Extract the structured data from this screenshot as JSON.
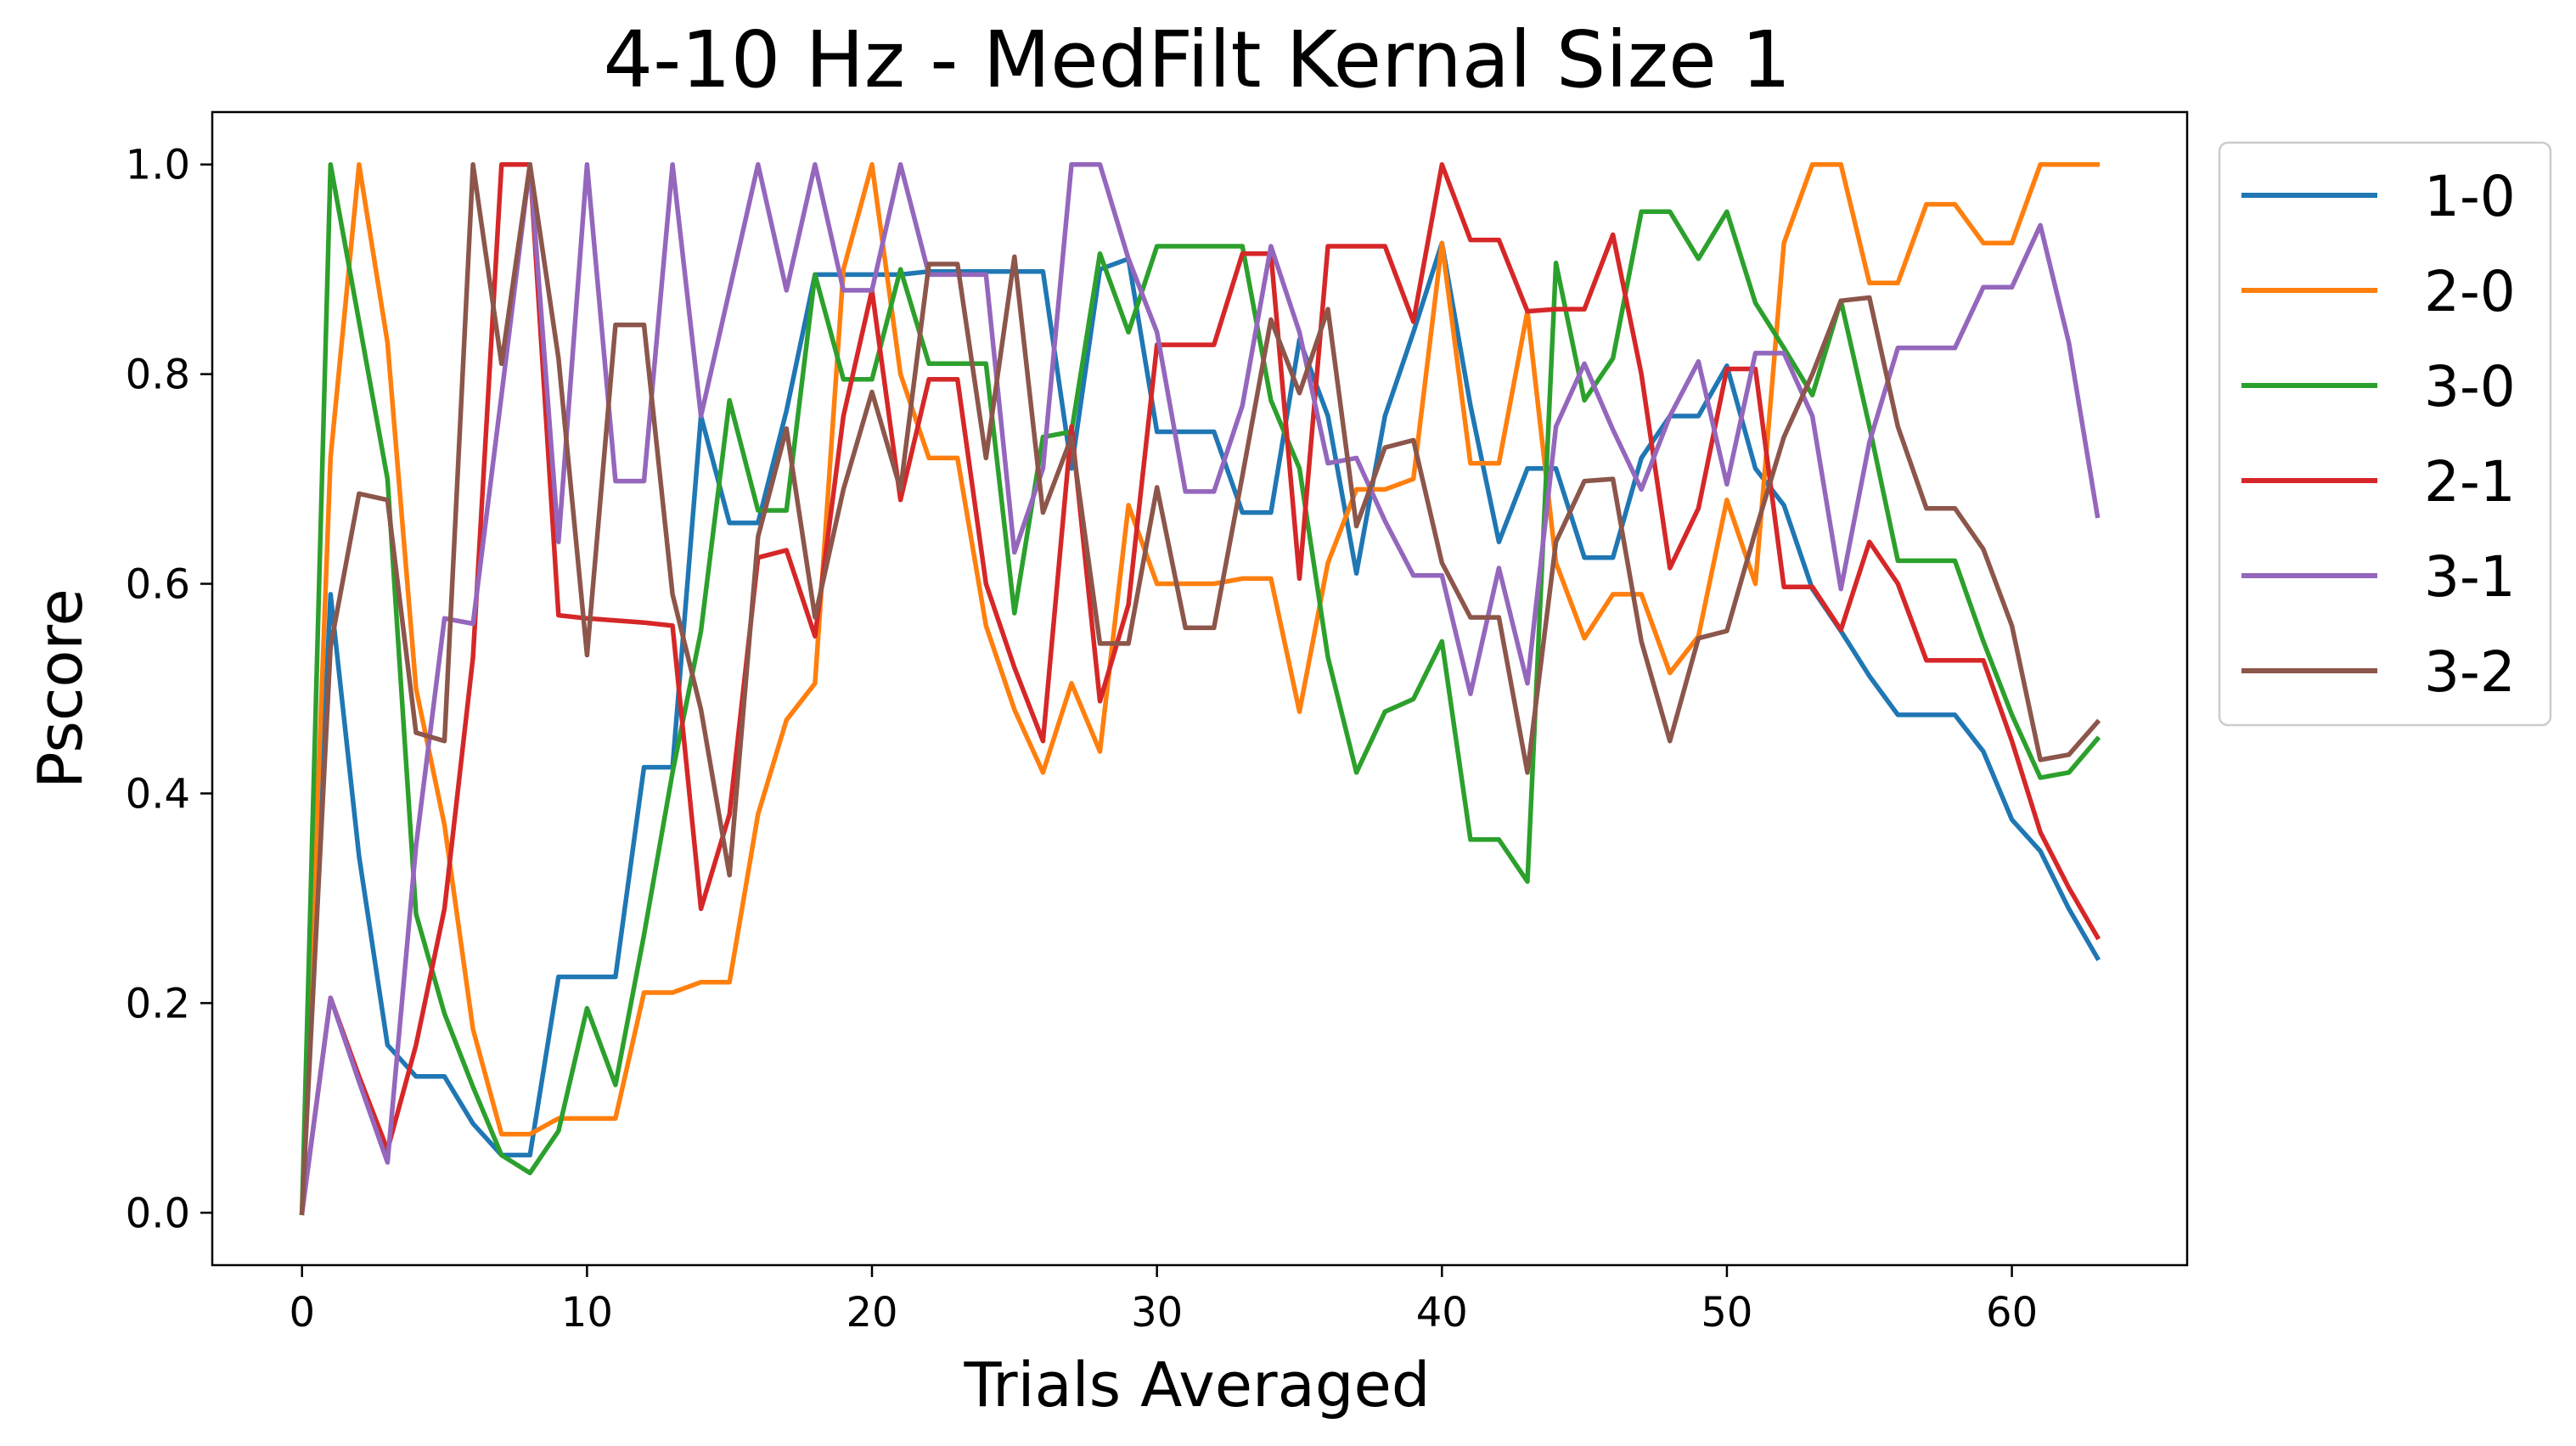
{
  "chart_data": {
    "type": "line",
    "title": "4-10 Hz - MedFilt Kernal Size 1",
    "xlabel": "Trials Averaged",
    "ylabel": "Pscore",
    "xlim": [
      -3.15,
      66.15
    ],
    "ylim": [
      -0.05,
      1.05
    ],
    "xticks": [
      0,
      10,
      20,
      30,
      40,
      50,
      60
    ],
    "xtick_labels": [
      "0",
      "10",
      "20",
      "30",
      "40",
      "50",
      "60"
    ],
    "yticks": [
      0.0,
      0.2,
      0.4,
      0.6,
      0.8,
      1.0
    ],
    "ytick_labels": [
      "0.0",
      "0.2",
      "0.4",
      "0.6",
      "0.8",
      "1.0"
    ],
    "grid": false,
    "legend_position": "outside-right-top",
    "x": [
      0,
      1,
      2,
      3,
      4,
      5,
      6,
      7,
      8,
      9,
      10,
      11,
      12,
      13,
      14,
      15,
      16,
      17,
      18,
      19,
      20,
      21,
      22,
      23,
      24,
      25,
      26,
      27,
      28,
      29,
      30,
      31,
      32,
      33,
      34,
      35,
      36,
      37,
      38,
      39,
      40,
      41,
      42,
      43,
      44,
      45,
      46,
      47,
      48,
      49,
      50,
      51,
      52,
      53,
      54,
      55,
      56,
      57,
      58,
      59,
      60,
      61,
      62,
      63
    ],
    "series": [
      {
        "name": "1-0",
        "color": "#1f77b4",
        "values": [
          0,
          0.59,
          0.34,
          0.16,
          0.13,
          0.13,
          0.085,
          0.055,
          0.055,
          0.225,
          0.225,
          0.225,
          0.425,
          0.425,
          0.76,
          0.658,
          0.658,
          0.765,
          0.895,
          0.895,
          0.895,
          0.895,
          0.898,
          0.898,
          0.898,
          0.898,
          0.898,
          0.71,
          0.9,
          0.91,
          0.745,
          0.745,
          0.745,
          0.668,
          0.668,
          0.833,
          0.76,
          0.61,
          0.76,
          0.84,
          0.925,
          0.77,
          0.64,
          0.71,
          0.71,
          0.625,
          0.625,
          0.72,
          0.76,
          0.76,
          0.808,
          0.71,
          0.675,
          0.595,
          0.555,
          0.512,
          0.475,
          0.475,
          0.475,
          0.44,
          0.375,
          0.345,
          0.29,
          0.243
        ]
      },
      {
        "name": "2-0",
        "color": "#ff7f0e",
        "values": [
          0,
          0.72,
          1.0,
          0.83,
          0.5,
          0.37,
          0.175,
          0.075,
          0.075,
          0.09,
          0.09,
          0.09,
          0.21,
          0.21,
          0.22,
          0.22,
          0.38,
          0.47,
          0.505,
          0.9,
          1.0,
          0.8,
          0.72,
          0.72,
          0.56,
          0.48,
          0.42,
          0.505,
          0.44,
          0.675,
          0.6,
          0.6,
          0.6,
          0.605,
          0.605,
          0.478,
          0.62,
          0.69,
          0.69,
          0.7,
          0.925,
          0.715,
          0.715,
          0.86,
          0.62,
          0.548,
          0.59,
          0.59,
          0.515,
          0.55,
          0.68,
          0.6,
          0.925,
          1.0,
          1.0,
          0.887,
          0.887,
          0.962,
          0.962,
          0.925,
          0.925,
          1.0,
          1.0,
          1.0
        ]
      },
      {
        "name": "3-0",
        "color": "#2ca02c",
        "values": [
          0,
          1.0,
          0.85,
          0.7,
          0.285,
          0.19,
          0.12,
          0.055,
          0.038,
          0.078,
          0.195,
          0.122,
          0.265,
          0.42,
          0.555,
          0.775,
          0.67,
          0.67,
          0.895,
          0.795,
          0.795,
          0.9,
          0.81,
          0.81,
          0.81,
          0.572,
          0.74,
          0.745,
          0.915,
          0.84,
          0.922,
          0.922,
          0.922,
          0.922,
          0.775,
          0.71,
          0.53,
          0.42,
          0.478,
          0.49,
          0.545,
          0.356,
          0.356,
          0.316,
          0.906,
          0.775,
          0.815,
          0.955,
          0.955,
          0.91,
          0.955,
          0.868,
          0.825,
          0.78,
          0.87,
          0.75,
          0.622,
          0.622,
          0.622,
          0.545,
          0.475,
          0.415,
          0.42,
          0.452
        ]
      },
      {
        "name": "2-1",
        "color": "#d62728",
        "values": [
          0,
          0.205,
          0.13,
          0.06,
          0.16,
          0.29,
          0.53,
          1.0,
          1.0,
          0.57,
          0.567,
          0.565,
          0.563,
          0.56,
          0.29,
          0.38,
          0.625,
          0.632,
          0.55,
          0.76,
          0.88,
          0.68,
          0.795,
          0.795,
          0.6,
          0.52,
          0.45,
          0.75,
          0.488,
          0.58,
          0.828,
          0.828,
          0.828,
          0.915,
          0.915,
          0.605,
          0.922,
          0.922,
          0.922,
          0.85,
          1.0,
          0.928,
          0.928,
          0.86,
          0.862,
          0.862,
          0.933,
          0.8,
          0.615,
          0.672,
          0.805,
          0.805,
          0.597,
          0.597,
          0.556,
          0.64,
          0.6,
          0.527,
          0.527,
          0.527,
          0.45,
          0.363,
          0.31,
          0.263
        ]
      },
      {
        "name": "3-1",
        "color": "#9467bd",
        "values": [
          0,
          0.205,
          0.125,
          0.048,
          0.35,
          0.567,
          0.562,
          0.78,
          1.0,
          0.64,
          1.0,
          0.698,
          0.698,
          1.0,
          0.76,
          0.88,
          1.0,
          0.88,
          1.0,
          0.88,
          0.88,
          1.0,
          0.895,
          0.895,
          0.895,
          0.63,
          0.71,
          1.0,
          1.0,
          0.91,
          0.84,
          0.688,
          0.688,
          0.77,
          0.922,
          0.84,
          0.715,
          0.72,
          0.66,
          0.608,
          0.608,
          0.495,
          0.615,
          0.505,
          0.75,
          0.81,
          0.747,
          0.69,
          0.76,
          0.812,
          0.695,
          0.82,
          0.82,
          0.76,
          0.595,
          0.735,
          0.825,
          0.825,
          0.825,
          0.883,
          0.883,
          0.942,
          0.83,
          0.665
        ]
      },
      {
        "name": "3-2",
        "color": "#8c564b",
        "values": [
          0,
          0.54,
          0.686,
          0.68,
          0.458,
          0.45,
          1.0,
          0.81,
          1.0,
          0.815,
          0.532,
          0.847,
          0.847,
          0.59,
          0.48,
          0.322,
          0.645,
          0.748,
          0.568,
          0.69,
          0.783,
          0.69,
          0.905,
          0.905,
          0.72,
          0.912,
          0.668,
          0.74,
          0.543,
          0.543,
          0.692,
          0.558,
          0.558,
          0.703,
          0.852,
          0.782,
          0.862,
          0.655,
          0.73,
          0.737,
          0.62,
          0.568,
          0.568,
          0.42,
          0.64,
          0.698,
          0.7,
          0.545,
          0.45,
          0.548,
          0.555,
          0.65,
          0.74,
          0.8,
          0.87,
          0.873,
          0.75,
          0.672,
          0.672,
          0.633,
          0.56,
          0.432,
          0.437,
          0.468
        ]
      }
    ]
  }
}
